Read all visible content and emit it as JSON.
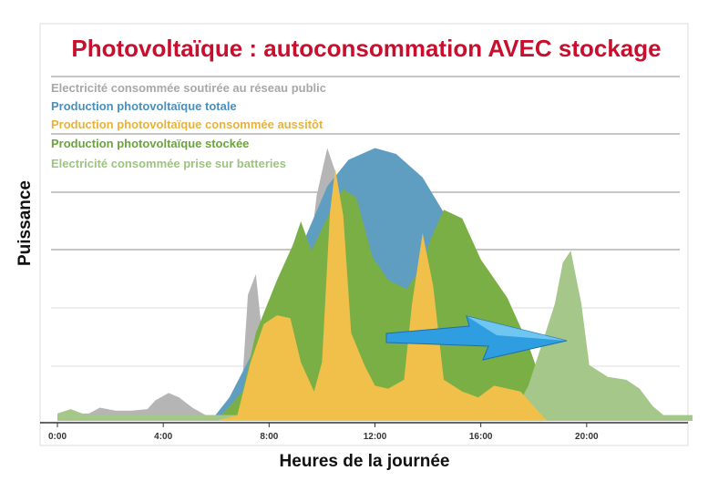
{
  "chart_data": {
    "type": "area",
    "title": "Photovoltaïque : autoconsommation AVEC stockage",
    "xlabel": "Heures de la journée",
    "ylabel": "Puissance",
    "xlim": [
      0,
      24
    ],
    "ylim": [
      0,
      100
    ],
    "x_ticks": [
      "0:00",
      "4:00",
      "8:00",
      "12:00",
      "16:00",
      "20:00"
    ],
    "x_tick_values": [
      0,
      4,
      8,
      12,
      16,
      20
    ],
    "grid": "horizontal",
    "legend_position": "top-left",
    "colors": {
      "title": "#c8102e",
      "grid": "#9a9a9a",
      "axis": "#333333"
    },
    "series": [
      {
        "name": "Electricité consommée soutirée au réseau public",
        "color": "#b5b5b5",
        "points": [
          [
            0,
            2.5
          ],
          [
            1.2,
            2.5
          ],
          [
            1.6,
            4.5
          ],
          [
            2.2,
            3.5
          ],
          [
            2.8,
            3.5
          ],
          [
            3.4,
            4
          ],
          [
            3.7,
            7
          ],
          [
            4.2,
            9.5
          ],
          [
            4.6,
            8
          ],
          [
            5.1,
            4.5
          ],
          [
            5.6,
            2
          ],
          [
            6.6,
            2
          ],
          [
            7,
            15
          ],
          [
            7.2,
            43
          ],
          [
            7.5,
            50
          ],
          [
            7.8,
            24
          ],
          [
            8.2,
            28
          ],
          [
            9.2,
            46
          ],
          [
            9.6,
            62
          ],
          [
            9.8,
            77
          ],
          [
            10.2,
            93
          ],
          [
            10.5,
            85
          ],
          [
            10.8,
            66
          ],
          [
            11.5,
            56
          ],
          [
            12,
            55
          ],
          [
            12.5,
            46
          ],
          [
            13,
            37
          ],
          [
            14,
            37
          ],
          [
            14.8,
            45
          ],
          [
            15.5,
            40
          ],
          [
            16,
            35
          ],
          [
            17,
            31
          ],
          [
            17.8,
            10
          ],
          [
            18.1,
            6
          ],
          [
            18.5,
            0
          ],
          [
            20,
            0
          ],
          [
            24,
            0
          ]
        ]
      },
      {
        "name": "Production photovoltaïque totale",
        "color": "#5f9ec0",
        "points": [
          [
            5.8,
            0
          ],
          [
            6.5,
            8
          ],
          [
            7.3,
            22
          ],
          [
            8.2,
            40
          ],
          [
            9.2,
            59
          ],
          [
            10.2,
            80
          ],
          [
            11,
            89
          ],
          [
            12,
            93
          ],
          [
            12.8,
            91
          ],
          [
            13.8,
            83
          ],
          [
            14.8,
            68
          ],
          [
            15.7,
            50
          ],
          [
            16.4,
            36
          ],
          [
            17.3,
            23
          ],
          [
            18.1,
            12
          ],
          [
            18.5,
            6
          ],
          [
            18.8,
            0
          ]
        ]
      },
      {
        "name": "Production photovoltaïque stockée",
        "color": "#7aaf45",
        "points": [
          [
            5.8,
            0
          ],
          [
            6.2,
            2
          ],
          [
            7,
            10
          ],
          [
            7.5,
            30
          ],
          [
            8.3,
            48
          ],
          [
            8.9,
            60
          ],
          [
            9.2,
            68
          ],
          [
            9.6,
            58
          ],
          [
            10.4,
            73
          ],
          [
            10.8,
            79
          ],
          [
            11.3,
            76
          ],
          [
            11.9,
            56
          ],
          [
            12.5,
            48
          ],
          [
            13.2,
            45
          ],
          [
            13.8,
            53
          ],
          [
            14.1,
            62
          ],
          [
            14.6,
            72
          ],
          [
            15.3,
            69
          ],
          [
            16,
            55
          ],
          [
            17,
            42
          ],
          [
            17.8,
            26
          ],
          [
            18.3,
            13
          ],
          [
            18.7,
            3
          ],
          [
            19,
            0
          ]
        ]
      },
      {
        "name": "Electricité consommée prise sur batteries",
        "color": "#a5c78a",
        "points": [
          [
            0,
            2.5
          ],
          [
            0.5,
            4
          ],
          [
            1.1,
            2
          ],
          [
            17.2,
            2
          ],
          [
            17.8,
            12
          ],
          [
            18.3,
            26
          ],
          [
            18.8,
            40
          ],
          [
            19.1,
            54
          ],
          [
            19.4,
            58
          ],
          [
            19.8,
            40
          ],
          [
            20.1,
            19
          ],
          [
            20.8,
            15
          ],
          [
            21.5,
            14
          ],
          [
            22,
            11
          ],
          [
            22.5,
            5
          ],
          [
            22.9,
            2
          ],
          [
            24,
            2
          ]
        ]
      },
      {
        "name": "Production photovoltaïque consommée aussitôt",
        "color": "#f0c04a",
        "points": [
          [
            6,
            0
          ],
          [
            6.8,
            2
          ],
          [
            7.3,
            20
          ],
          [
            7.8,
            33
          ],
          [
            8.3,
            36
          ],
          [
            8.8,
            35
          ],
          [
            9.2,
            20
          ],
          [
            9.7,
            10
          ],
          [
            10,
            20
          ],
          [
            10.3,
            71
          ],
          [
            10.5,
            86
          ],
          [
            10.8,
            70
          ],
          [
            11.1,
            30
          ],
          [
            11.6,
            19
          ],
          [
            12,
            12
          ],
          [
            12.5,
            11
          ],
          [
            13.1,
            14
          ],
          [
            13.4,
            40
          ],
          [
            13.8,
            64
          ],
          [
            14.2,
            46
          ],
          [
            14.6,
            14
          ],
          [
            15.3,
            10
          ],
          [
            15.9,
            8
          ],
          [
            16.5,
            12
          ],
          [
            17.5,
            10
          ],
          [
            18.5,
            0
          ]
        ]
      }
    ]
  }
}
